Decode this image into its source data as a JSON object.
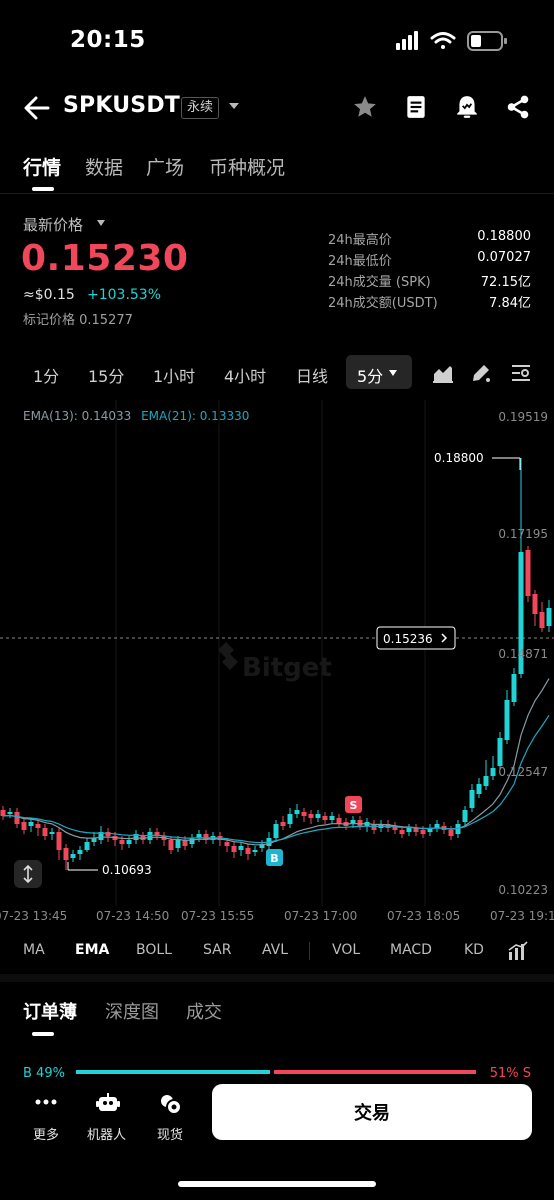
{
  "status_bar": {
    "time": "20:15"
  },
  "header": {
    "symbol": "SPKUSDT",
    "contract_type": "永续"
  },
  "top_tabs": [
    "行情",
    "数据",
    "广场",
    "币种概况"
  ],
  "price": {
    "latest_label": "最新价格",
    "last": "0.15230",
    "usd_approx": "≈$0.15",
    "change_pct": "+103.53%",
    "mark_price": "标记价格 0.15277",
    "colors": {
      "down": "#f0475b",
      "up": "#1fd3d6"
    }
  },
  "stats": [
    {
      "label": "24h最高价",
      "value": "0.18800"
    },
    {
      "label": "24h最低价",
      "value": "0.07027"
    },
    {
      "label": "24h成交量 (SPK)",
      "value": "72.15亿"
    },
    {
      "label": "24h成交额(USDT)",
      "value": "7.84亿"
    }
  ],
  "intervals": [
    "1分",
    "15分",
    "1小时",
    "4小时",
    "日线"
  ],
  "interval_active": "5分",
  "chart": {
    "ema13": "EMA(13): 0.14033",
    "ema21": "EMA(21): 0.13330",
    "y_ticks": [
      "0.19519",
      "0.17195",
      "0.14871",
      "0.12547",
      "0.10223"
    ],
    "x_ticks": [
      "07-23 13:45",
      "07-23 14:50",
      "07-23 15:55",
      "07-23 17:00",
      "07-23 18:05",
      "07-23 19:1"
    ],
    "high_marker": "0.18800",
    "low_marker": "0.10693",
    "current_price_tag": "0.15236",
    "watermark": "Bitget",
    "buy_marker": "B",
    "sell_marker": "S"
  },
  "indicators": [
    "MA",
    "EMA",
    "BOLL",
    "SAR",
    "AVL",
    "VOL",
    "MACD",
    "KD"
  ],
  "indicator_active": "EMA",
  "orderbook_tabs": [
    "订单薄",
    "深度图",
    "成交"
  ],
  "orderbook_ratio": {
    "buy": "B 49%",
    "sell": "51% S"
  },
  "bottom_nav": {
    "more": "更多",
    "bot": "机器人",
    "spot": "现货",
    "trade": "交易"
  }
}
